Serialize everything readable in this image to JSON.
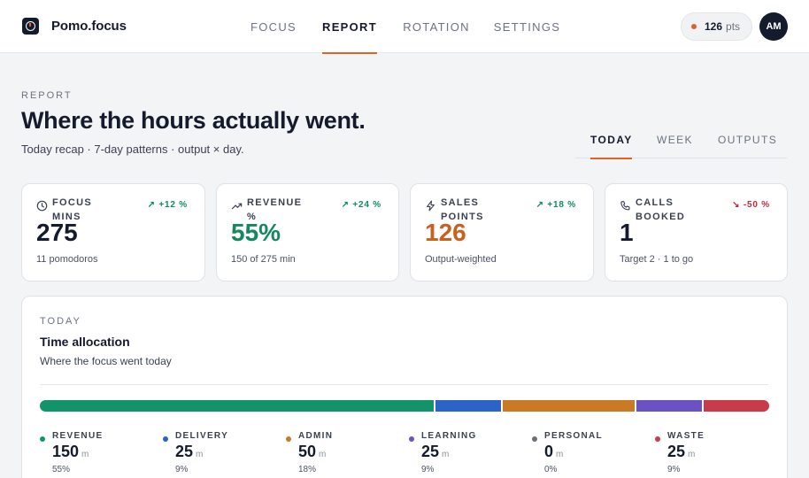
{
  "brand": {
    "name": "Pomo",
    "dot": ".",
    "suffix": "focus"
  },
  "nav": {
    "tabs": [
      {
        "label": "FOCUS"
      },
      {
        "label": "REPORT",
        "active": true
      },
      {
        "label": "ROTATION"
      },
      {
        "label": "SETTINGS"
      }
    ]
  },
  "points": {
    "value": "126",
    "unit": "pts"
  },
  "user": {
    "initials": "AM"
  },
  "page": {
    "eyebrow": "REPORT",
    "title": "Where the hours actually went.",
    "subtitle": "Today recap · 7-day patterns · output × day."
  },
  "range_tabs": [
    {
      "label": "TODAY",
      "active": true
    },
    {
      "label": "WEEK"
    },
    {
      "label": "OUTPUTS"
    }
  ],
  "stats": [
    {
      "label_line1": "FOCUS",
      "label_line2": "MINS",
      "icon": "clock-icon",
      "delta": "↗ +12 %",
      "trend": "up",
      "value": "275",
      "note": "11 pomodoros"
    },
    {
      "label_line1": "REVENUE",
      "label_line2": "%",
      "icon": "trend-up-icon",
      "delta": "↗ +24 %",
      "trend": "up",
      "value": "55%",
      "note": "150 of 275 min"
    },
    {
      "label_line1": "SALES",
      "label_line2": "POINTS",
      "icon": "bolt-icon",
      "delta": "↗ +18 %",
      "trend": "up",
      "value": "126",
      "note": "Output-weighted"
    },
    {
      "label_line1": "CALLS",
      "label_line2": "BOOKED",
      "icon": "phone-icon",
      "delta": "↘ -50 %",
      "trend": "down",
      "value": "1",
      "note": "Target 2 · 1 to go"
    }
  ],
  "allocation": {
    "eyebrow": "TODAY",
    "title": "Time allocation",
    "subtitle": "Where the focus went today",
    "unit": "m",
    "categories": [
      {
        "name": "REVENUE",
        "minutes": "150",
        "pct": "55%",
        "color": "#12936a"
      },
      {
        "name": "DELIVERY",
        "minutes": "25",
        "pct": "9%",
        "color": "#2c63c9"
      },
      {
        "name": "ADMIN",
        "minutes": "50",
        "pct": "18%",
        "color": "#c97a23"
      },
      {
        "name": "LEARNING",
        "minutes": "25",
        "pct": "9%",
        "color": "#6a52c4"
      },
      {
        "name": "PERSONAL",
        "minutes": "0",
        "pct": "0%",
        "color": "#6b6f78"
      },
      {
        "name": "WASTE",
        "minutes": "25",
        "pct": "9%",
        "color": "#c93a4a"
      }
    ]
  }
}
